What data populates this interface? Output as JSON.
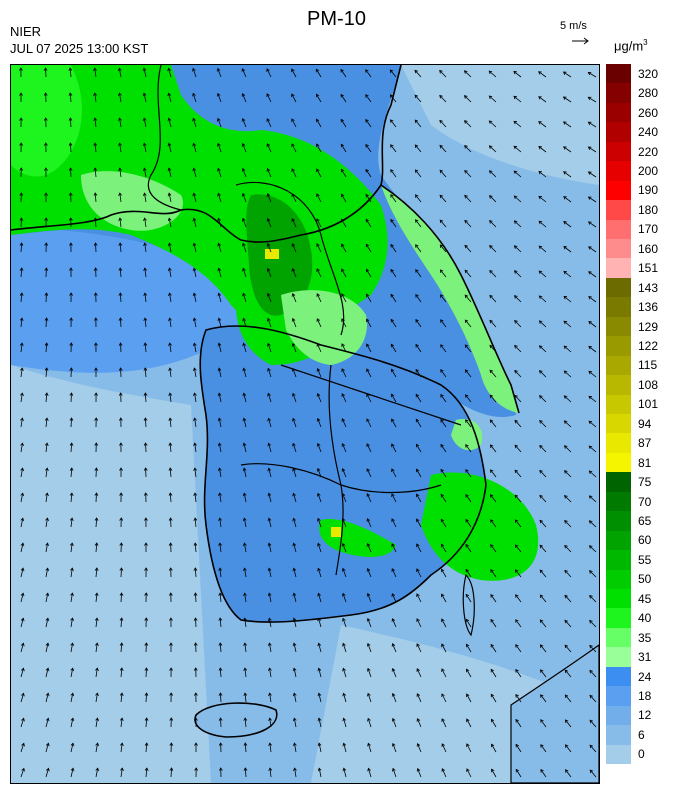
{
  "header": {
    "title": "PM-10",
    "org": "NIER",
    "timestamp": "JUL 07 2025 13:00 KST",
    "ref_speed": "5 m/s",
    "unit": "μg/m",
    "unit_sup": "3"
  },
  "legend": {
    "ticks": [
      "320",
      "280",
      "260",
      "240",
      "220",
      "200",
      "190",
      "180",
      "170",
      "160",
      "151",
      "143",
      "136",
      "129",
      "122",
      "115",
      "108",
      "101",
      "94",
      "87",
      "81",
      "75",
      "70",
      "65",
      "60",
      "55",
      "50",
      "45",
      "40",
      "35",
      "31",
      "24",
      "18",
      "12",
      "6",
      "0"
    ],
    "colors": [
      "#6b0000",
      "#850000",
      "#9a0000",
      "#b00000",
      "#cc0000",
      "#e60000",
      "#ff0000",
      "#ff4848",
      "#ff6f6f",
      "#ff8c8c",
      "#ffb3b3",
      "#6b6b00",
      "#7a7a00",
      "#8a8a00",
      "#999900",
      "#a8a800",
      "#b8b800",
      "#c8c800",
      "#d8d800",
      "#e8e800",
      "#f5f500",
      "#006400",
      "#007a00",
      "#008f00",
      "#00a300",
      "#00b800",
      "#00cc00",
      "#00e000",
      "#1ef51e",
      "#66ff66",
      "#99ff99",
      "#3c8ef0",
      "#5a9ff0",
      "#72aeea",
      "#88bce8",
      "#a3cde8"
    ]
  },
  "map": {
    "colors": {
      "sea": "#88bce8",
      "sea_light": "#a3cde8",
      "land_blue": "#4a90e2",
      "green_light": "#7cf27c",
      "green": "#00e000",
      "green_dark": "#00a300",
      "yellow": "#e8e800",
      "boundary": "#000000"
    }
  }
}
